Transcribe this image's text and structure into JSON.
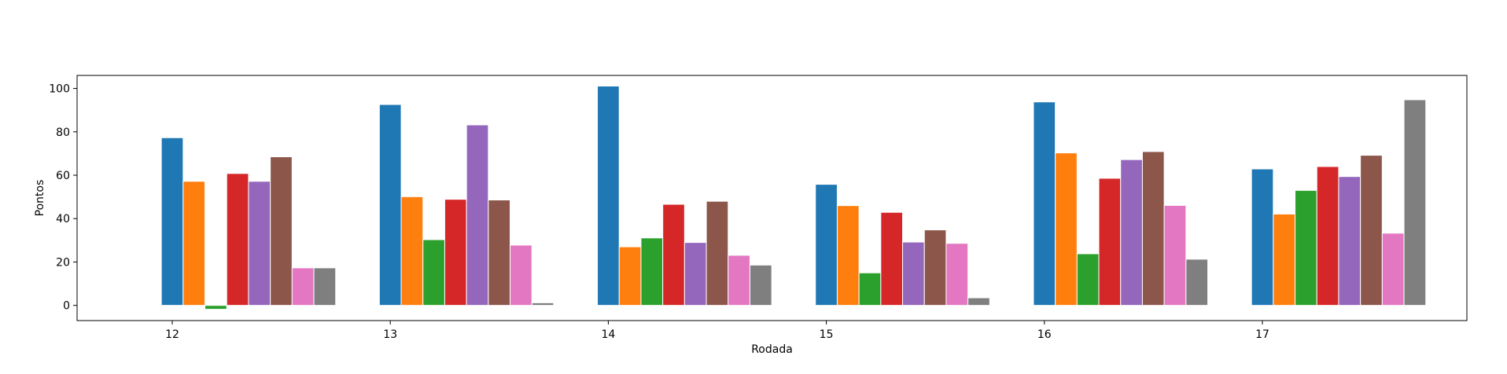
{
  "chart_data": {
    "type": "bar",
    "title": "",
    "xlabel": "Rodada",
    "ylabel": "Pontos",
    "categories": [
      "12",
      "13",
      "14",
      "15",
      "16",
      "17"
    ],
    "ylim": [
      -7,
      106
    ],
    "yticks": [
      0,
      20,
      40,
      60,
      80,
      100
    ],
    "grid": false,
    "legend": "none",
    "series": [
      {
        "color": "#1f77b4",
        "values": [
          77.3,
          92.6,
          101.1,
          55.8,
          93.8,
          62.9
        ]
      },
      {
        "color": "#ff7f0e",
        "values": [
          57.2,
          50.1,
          27.0,
          46.0,
          70.3,
          42.1
        ]
      },
      {
        "color": "#2ca02c",
        "values": [
          -1.8,
          30.3,
          31.1,
          15.0,
          23.8,
          53.0
        ]
      },
      {
        "color": "#d62728",
        "values": [
          60.8,
          48.9,
          46.6,
          42.9,
          58.6,
          64.0
        ]
      },
      {
        "color": "#9467bd",
        "values": [
          57.2,
          83.2,
          29.0,
          29.2,
          67.2,
          59.4
        ]
      },
      {
        "color": "#8c564b",
        "values": [
          68.5,
          48.6,
          48.0,
          34.8,
          70.9,
          69.2
        ]
      },
      {
        "color": "#e377c2",
        "values": [
          17.3,
          27.8,
          23.1,
          28.6,
          46.1,
          33.3
        ]
      },
      {
        "color": "#7f7f7f",
        "values": [
          17.3,
          1.2,
          18.6,
          3.5,
          21.3,
          94.8
        ]
      }
    ]
  }
}
